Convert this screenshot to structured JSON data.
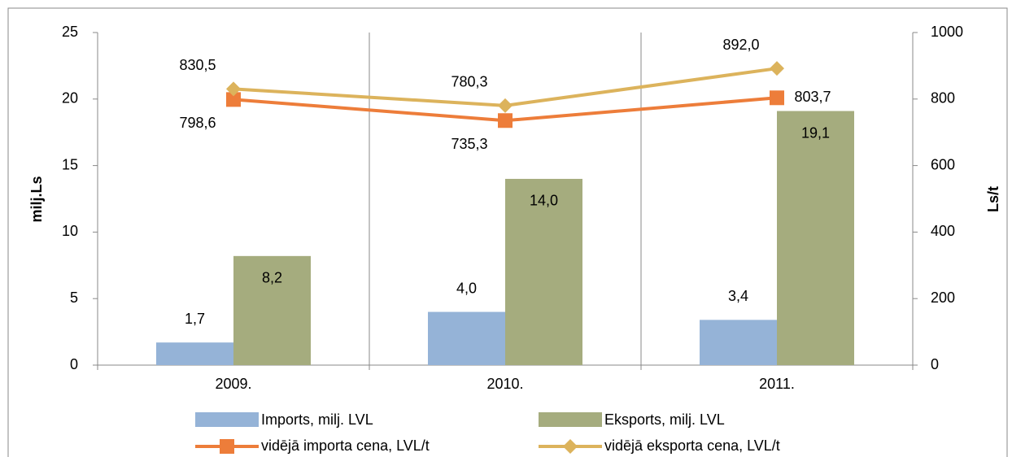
{
  "chart_data": {
    "type": "bar-line",
    "categories": [
      "2009.",
      "2010.",
      "2011."
    ],
    "ylabel": "milj.Ls",
    "y2label": "Ls/t",
    "ylim": [
      0,
      25
    ],
    "yticks": [
      0,
      5,
      10,
      15,
      20,
      25
    ],
    "y2lim": [
      0,
      1000
    ],
    "y2ticks": [
      0,
      200,
      400,
      600,
      800,
      1000
    ],
    "series": [
      {
        "name": "Imports, milj. LVL",
        "type": "bar",
        "color": "#95b3d7",
        "values": [
          1.7,
          4.0,
          3.4
        ],
        "value_labels": [
          "1,7",
          "4,0",
          "3,4"
        ]
      },
      {
        "name": "Eksports, milj. LVL",
        "type": "bar",
        "color": "#a5ac7e",
        "values": [
          8.2,
          14.0,
          19.1
        ],
        "value_labels": [
          "8,2",
          "14,0",
          "19,1"
        ]
      },
      {
        "name": "vidējā importa cena, LVL/t",
        "type": "line",
        "axis": "y2",
        "color": "#ed7d3a",
        "values": [
          798.6,
          735.3,
          803.7
        ],
        "value_labels": [
          "798,6",
          "735,3",
          "803,7"
        ]
      },
      {
        "name": "vidējā eksporta cena, LVL/t",
        "type": "line",
        "axis": "y2",
        "color": "#dcb35c",
        "values": [
          830.5,
          780.3,
          892.0
        ],
        "value_labels": [
          "830,5",
          "780,3",
          "892,0"
        ]
      }
    ]
  }
}
